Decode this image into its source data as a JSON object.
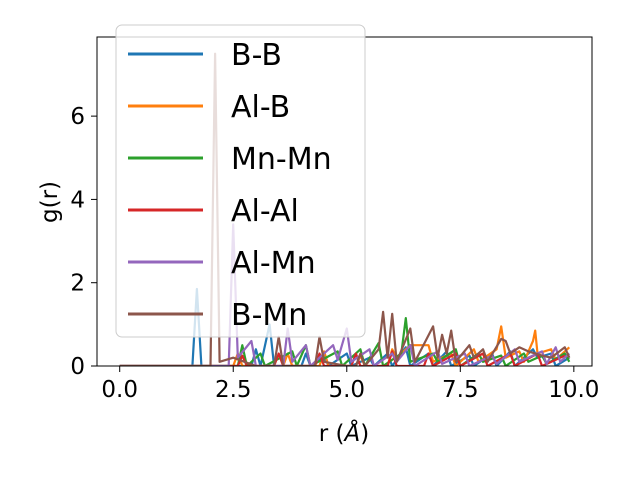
{
  "chart_data": {
    "type": "line",
    "title": "",
    "xlabel": "r (",
    "xlabel_unit": "Å",
    "xlabel_close": ")",
    "ylabel": "g(r)",
    "xlim": [
      -0.5,
      10.4
    ],
    "ylim": [
      0,
      7.9
    ],
    "xticks": [
      0.0,
      2.5,
      5.0,
      7.5,
      10.0
    ],
    "xtick_labels": [
      "0.0",
      "2.5",
      "5.0",
      "7.5",
      "10.0"
    ],
    "yticks": [
      0,
      2,
      4,
      6
    ],
    "ytick_labels": [
      "0",
      "2",
      "4",
      "6"
    ],
    "grid": false,
    "legend_position": "upper-left",
    "series": [
      {
        "name": "B-B",
        "color": "#1f77b4",
        "points": [
          [
            0,
            0
          ],
          [
            1.6,
            0
          ],
          [
            1.7,
            1.85
          ],
          [
            1.8,
            0
          ],
          [
            2.9,
            0
          ],
          [
            3.0,
            0.4
          ],
          [
            3.1,
            0
          ],
          [
            3.3,
            1.0
          ],
          [
            3.4,
            0
          ],
          [
            4.0,
            0
          ],
          [
            4.1,
            0.3
          ],
          [
            4.2,
            0
          ],
          [
            4.5,
            0.25
          ],
          [
            4.6,
            0
          ],
          [
            5.0,
            0.3
          ],
          [
            5.1,
            0
          ],
          [
            5.5,
            0.2
          ],
          [
            5.6,
            0
          ],
          [
            5.9,
            0.3
          ],
          [
            6.0,
            0
          ],
          [
            6.3,
            0.45
          ],
          [
            6.4,
            0
          ],
          [
            6.8,
            0.3
          ],
          [
            6.9,
            0
          ],
          [
            7.2,
            0.35
          ],
          [
            7.3,
            0
          ],
          [
            7.7,
            0.25
          ],
          [
            7.8,
            0
          ],
          [
            8.2,
            0.3
          ],
          [
            8.3,
            0
          ],
          [
            8.6,
            0.35
          ],
          [
            8.7,
            0
          ],
          [
            9.1,
            0.4
          ],
          [
            9.2,
            0.2
          ],
          [
            9.5,
            0.3
          ],
          [
            9.6,
            0
          ],
          [
            9.9,
            0.2
          ]
        ]
      },
      {
        "name": "Al-B",
        "color": "#ff7f0e",
        "points": [
          [
            0,
            0
          ],
          [
            2.5,
            0
          ],
          [
            2.6,
            0.3
          ],
          [
            2.7,
            0
          ],
          [
            3.6,
            0
          ],
          [
            3.7,
            0.3
          ],
          [
            3.8,
            0
          ],
          [
            4.4,
            0
          ],
          [
            4.5,
            0.35
          ],
          [
            4.6,
            0
          ],
          [
            5.2,
            0
          ],
          [
            5.3,
            0.25
          ],
          [
            5.4,
            0
          ],
          [
            5.9,
            0
          ],
          [
            6.0,
            0.4
          ],
          [
            6.1,
            0.2
          ],
          [
            6.4,
            0.5
          ],
          [
            6.8,
            0.5
          ],
          [
            6.9,
            0.1
          ],
          [
            7.3,
            0.3
          ],
          [
            7.4,
            0
          ],
          [
            7.8,
            0.4
          ],
          [
            7.9,
            0.1
          ],
          [
            8.3,
            0.4
          ],
          [
            8.4,
            0.95
          ],
          [
            8.5,
            0.2
          ],
          [
            8.8,
            0.35
          ],
          [
            8.9,
            0.1
          ],
          [
            9.1,
            0.6
          ],
          [
            9.15,
            0.85
          ],
          [
            9.2,
            0.3
          ],
          [
            9.5,
            0.4
          ],
          [
            9.6,
            0.15
          ],
          [
            9.9,
            0.45
          ]
        ]
      },
      {
        "name": "Mn-Mn",
        "color": "#2ca02c",
        "points": [
          [
            0,
            0
          ],
          [
            2.6,
            0
          ],
          [
            2.7,
            0.5
          ],
          [
            2.8,
            0
          ],
          [
            3.1,
            0.3
          ],
          [
            3.2,
            0
          ],
          [
            3.8,
            0.35
          ],
          [
            3.9,
            0
          ],
          [
            4.1,
            0.5
          ],
          [
            4.2,
            0
          ],
          [
            4.8,
            0.35
          ],
          [
            4.9,
            0
          ],
          [
            5.3,
            0.4
          ],
          [
            5.4,
            0
          ],
          [
            5.7,
            0.55
          ],
          [
            5.8,
            0
          ],
          [
            6.2,
            0.3
          ],
          [
            6.3,
            1.15
          ],
          [
            6.4,
            0.1
          ],
          [
            6.9,
            0.3
          ],
          [
            7.0,
            0.1
          ],
          [
            7.4,
            0.4
          ],
          [
            7.5,
            0
          ],
          [
            7.9,
            0.3
          ],
          [
            8.0,
            0.1
          ],
          [
            8.4,
            0.25
          ],
          [
            8.5,
            0
          ],
          [
            8.9,
            0.3
          ],
          [
            9.0,
            0.1
          ],
          [
            9.3,
            0.25
          ],
          [
            9.4,
            0.05
          ],
          [
            9.8,
            0.3
          ],
          [
            9.9,
            0.1
          ]
        ]
      },
      {
        "name": "Al-Al",
        "color": "#d62728",
        "points": [
          [
            0,
            0
          ],
          [
            2.6,
            0
          ],
          [
            2.7,
            0.25
          ],
          [
            2.8,
            0
          ],
          [
            3.4,
            0
          ],
          [
            3.5,
            0.3
          ],
          [
            3.6,
            0
          ],
          [
            4.3,
            0
          ],
          [
            4.4,
            0.3
          ],
          [
            4.5,
            0
          ],
          [
            5.1,
            0
          ],
          [
            5.2,
            0.3
          ],
          [
            5.3,
            0
          ],
          [
            5.9,
            0
          ],
          [
            6.0,
            0.35
          ],
          [
            6.1,
            0
          ],
          [
            6.7,
            0
          ],
          [
            6.8,
            0.3
          ],
          [
            6.9,
            0
          ],
          [
            7.4,
            0.3
          ],
          [
            7.5,
            0
          ],
          [
            8.0,
            0.3
          ],
          [
            8.1,
            0
          ],
          [
            8.6,
            0.3
          ],
          [
            8.7,
            0
          ],
          [
            9.2,
            0.3
          ],
          [
            9.3,
            0
          ],
          [
            9.8,
            0.25
          ]
        ]
      },
      {
        "name": "Al-Mn",
        "color": "#9467bd",
        "points": [
          [
            0,
            0
          ],
          [
            2.4,
            0
          ],
          [
            2.5,
            3.4
          ],
          [
            2.6,
            0.2
          ],
          [
            2.9,
            0.6
          ],
          [
            3.0,
            0
          ],
          [
            3.6,
            0
          ],
          [
            3.7,
            0.9
          ],
          [
            3.8,
            0.1
          ],
          [
            4.1,
            0.5
          ],
          [
            4.2,
            0
          ],
          [
            4.7,
            0.5
          ],
          [
            4.8,
            0.15
          ],
          [
            5.0,
            0.9
          ],
          [
            5.1,
            0.1
          ],
          [
            5.5,
            0.4
          ],
          [
            5.6,
            0
          ],
          [
            6.0,
            0.3
          ],
          [
            6.1,
            0.1
          ],
          [
            6.4,
            0.5
          ],
          [
            6.5,
            0
          ],
          [
            7.0,
            0.35
          ],
          [
            7.1,
            0.05
          ],
          [
            7.6,
            0.3
          ],
          [
            7.7,
            0
          ],
          [
            8.2,
            0.25
          ],
          [
            8.3,
            0.05
          ],
          [
            8.7,
            0.4
          ],
          [
            8.8,
            0.1
          ],
          [
            9.3,
            0.35
          ],
          [
            9.4,
            0.05
          ],
          [
            9.6,
            0.45
          ],
          [
            9.7,
            0.1
          ],
          [
            9.9,
            0.3
          ]
        ]
      },
      {
        "name": "B-Mn",
        "color": "#8c564b",
        "points": [
          [
            0,
            0
          ],
          [
            2.0,
            0
          ],
          [
            2.1,
            7.5
          ],
          [
            2.2,
            0.1
          ],
          [
            2.5,
            0.2
          ],
          [
            3.0,
            0
          ],
          [
            3.4,
            0
          ],
          [
            3.5,
            0.7
          ],
          [
            3.6,
            0
          ],
          [
            4.3,
            0
          ],
          [
            4.4,
            0.7
          ],
          [
            4.5,
            0.1
          ],
          [
            5.0,
            0
          ],
          [
            5.2,
            0
          ],
          [
            5.3,
            0.3
          ],
          [
            5.4,
            0
          ],
          [
            5.7,
            0.4
          ],
          [
            5.8,
            1.3
          ],
          [
            5.9,
            0.2
          ],
          [
            6.0,
            1.25
          ],
          [
            6.1,
            0.1
          ],
          [
            6.4,
            0.9
          ],
          [
            6.5,
            0.1
          ],
          [
            6.9,
            0.95
          ],
          [
            7.0,
            0.2
          ],
          [
            7.1,
            0.75
          ],
          [
            7.2,
            0.3
          ],
          [
            7.3,
            0.85
          ],
          [
            7.4,
            0.1
          ],
          [
            7.7,
            0.5
          ],
          [
            7.8,
            0.2
          ],
          [
            8.0,
            0.4
          ],
          [
            8.1,
            0.1
          ],
          [
            8.4,
            0.65
          ],
          [
            8.5,
            0.6
          ],
          [
            8.6,
            0.3
          ],
          [
            8.8,
            0.45
          ],
          [
            9.0,
            0.35
          ],
          [
            9.3,
            0.25
          ],
          [
            9.5,
            0.2
          ],
          [
            9.8,
            0.45
          ],
          [
            9.9,
            0.2
          ]
        ]
      }
    ]
  }
}
